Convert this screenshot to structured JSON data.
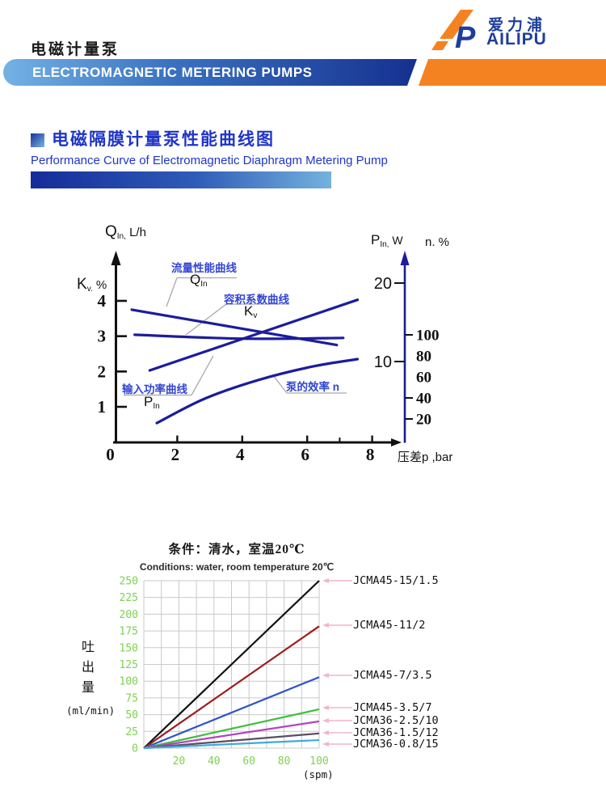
{
  "page": {
    "title": "电磁计量泵"
  },
  "header": {
    "banner": "ELECTROMAGNETIC METERING PUMPS",
    "logo_cn": "爱力浦",
    "logo_en": "AILIPU",
    "logo_letter": "P",
    "colors": {
      "banner_blue_light": "#74b2e4",
      "banner_blue_dark": "#15308f",
      "orange": "#f58220"
    }
  },
  "section": {
    "title_cn": "电磁隔膜计量泵性能曲线图",
    "title_en": "Performance Curve of Electromagnetic Diaphragm Metering Pump"
  },
  "chart_data": [
    {
      "id": "performance-curves",
      "type": "line",
      "xlabel": "压差p ,bar",
      "x_ticks": [
        0,
        2,
        4,
        6,
        8
      ],
      "x_minor_ticks": [
        7
      ],
      "xlim": [
        0,
        8.9
      ],
      "line_color": "#1c1c9c",
      "left_axis": {
        "title_main": "Q",
        "title_sub": "In,",
        "title_rest": " L/h",
        "scale_main": "K",
        "scale_sub": "v.",
        "scale_rest": " %",
        "ticks": [
          4,
          3,
          2,
          1
        ]
      },
      "right_axis": {
        "title_main": "P",
        "title_sub": "In,",
        "title_rest": " W",
        "title2": "n. %",
        "ticks_power": [
          20,
          10
        ],
        "ticks_efficiency": [
          100,
          80,
          60,
          40,
          20
        ]
      },
      "series": [
        {
          "name": "流量性能曲线",
          "symbol_main": "Q",
          "symbol_sub": "In",
          "points": [
            [
              0.6,
              3.75
            ],
            [
              6.91,
              2.75
            ]
          ]
        },
        {
          "name": "容积系数曲线",
          "symbol_main": "K",
          "symbol_sub": "v",
          "points": [
            [
              0.69,
              3.04
            ],
            [
              4.0,
              2.93
            ],
            [
              7.11,
              2.95
            ]
          ]
        },
        {
          "name": "输入功率曲线",
          "symbol_main": "P",
          "symbol_sub": "In",
          "points": [
            [
              1.15,
              2.03
            ],
            [
              7.55,
              4.03
            ]
          ]
        },
        {
          "name": "泵的效率 n",
          "points": [
            [
              1.37,
              0.54
            ],
            [
              2.84,
              1.23
            ],
            [
              4.5,
              1.76
            ],
            [
              6.16,
              2.14
            ],
            [
              7.55,
              2.35
            ]
          ]
        }
      ]
    },
    {
      "id": "flow-vs-spm",
      "type": "line",
      "title": "条件：清水，室温20℃",
      "subtitle": "Conditions: water, room temperature 20℃",
      "ylabel": "吐出量",
      "ylabel_unit": "(ml/min)",
      "xlabel_unit": "(spm)",
      "xlim": [
        0,
        100
      ],
      "ylim": [
        0,
        250
      ],
      "x_tick_labels": [
        20,
        40,
        60,
        80,
        100
      ],
      "y_tick_labels": [
        0,
        25,
        50,
        75,
        100,
        125,
        150,
        175,
        200,
        225,
        250
      ],
      "grid": true,
      "tick_color": "#7cd24f",
      "leader_color": "#f2b6c8",
      "series": [
        {
          "name": "JCMA45-15/1.5",
          "color": "#111111",
          "x": [
            0,
            100
          ],
          "y": [
            0,
            250
          ]
        },
        {
          "name": "JCMA45-11/2",
          "color": "#9b1b1b",
          "x": [
            0,
            100
          ],
          "y": [
            0,
            182
          ]
        },
        {
          "name": "JCMA45-7/3.5",
          "color": "#2d52c8",
          "x": [
            0,
            100
          ],
          "y": [
            0,
            106
          ]
        },
        {
          "name": "JCMA45-3.5/7",
          "color": "#3cbf3c",
          "x": [
            0,
            100
          ],
          "y": [
            0,
            58
          ]
        },
        {
          "name": "JCMA36-2.5/10",
          "color": "#b244bc",
          "x": [
            0,
            100
          ],
          "y": [
            0,
            40
          ]
        },
        {
          "name": "JCMA36-1.5/12",
          "color": "#5a4e5e",
          "x": [
            0,
            100
          ],
          "y": [
            0,
            22
          ]
        },
        {
          "name": "JCMA36-0.8/15",
          "color": "#41a9d9",
          "x": [
            0,
            100
          ],
          "y": [
            0,
            12
          ]
        }
      ]
    }
  ]
}
